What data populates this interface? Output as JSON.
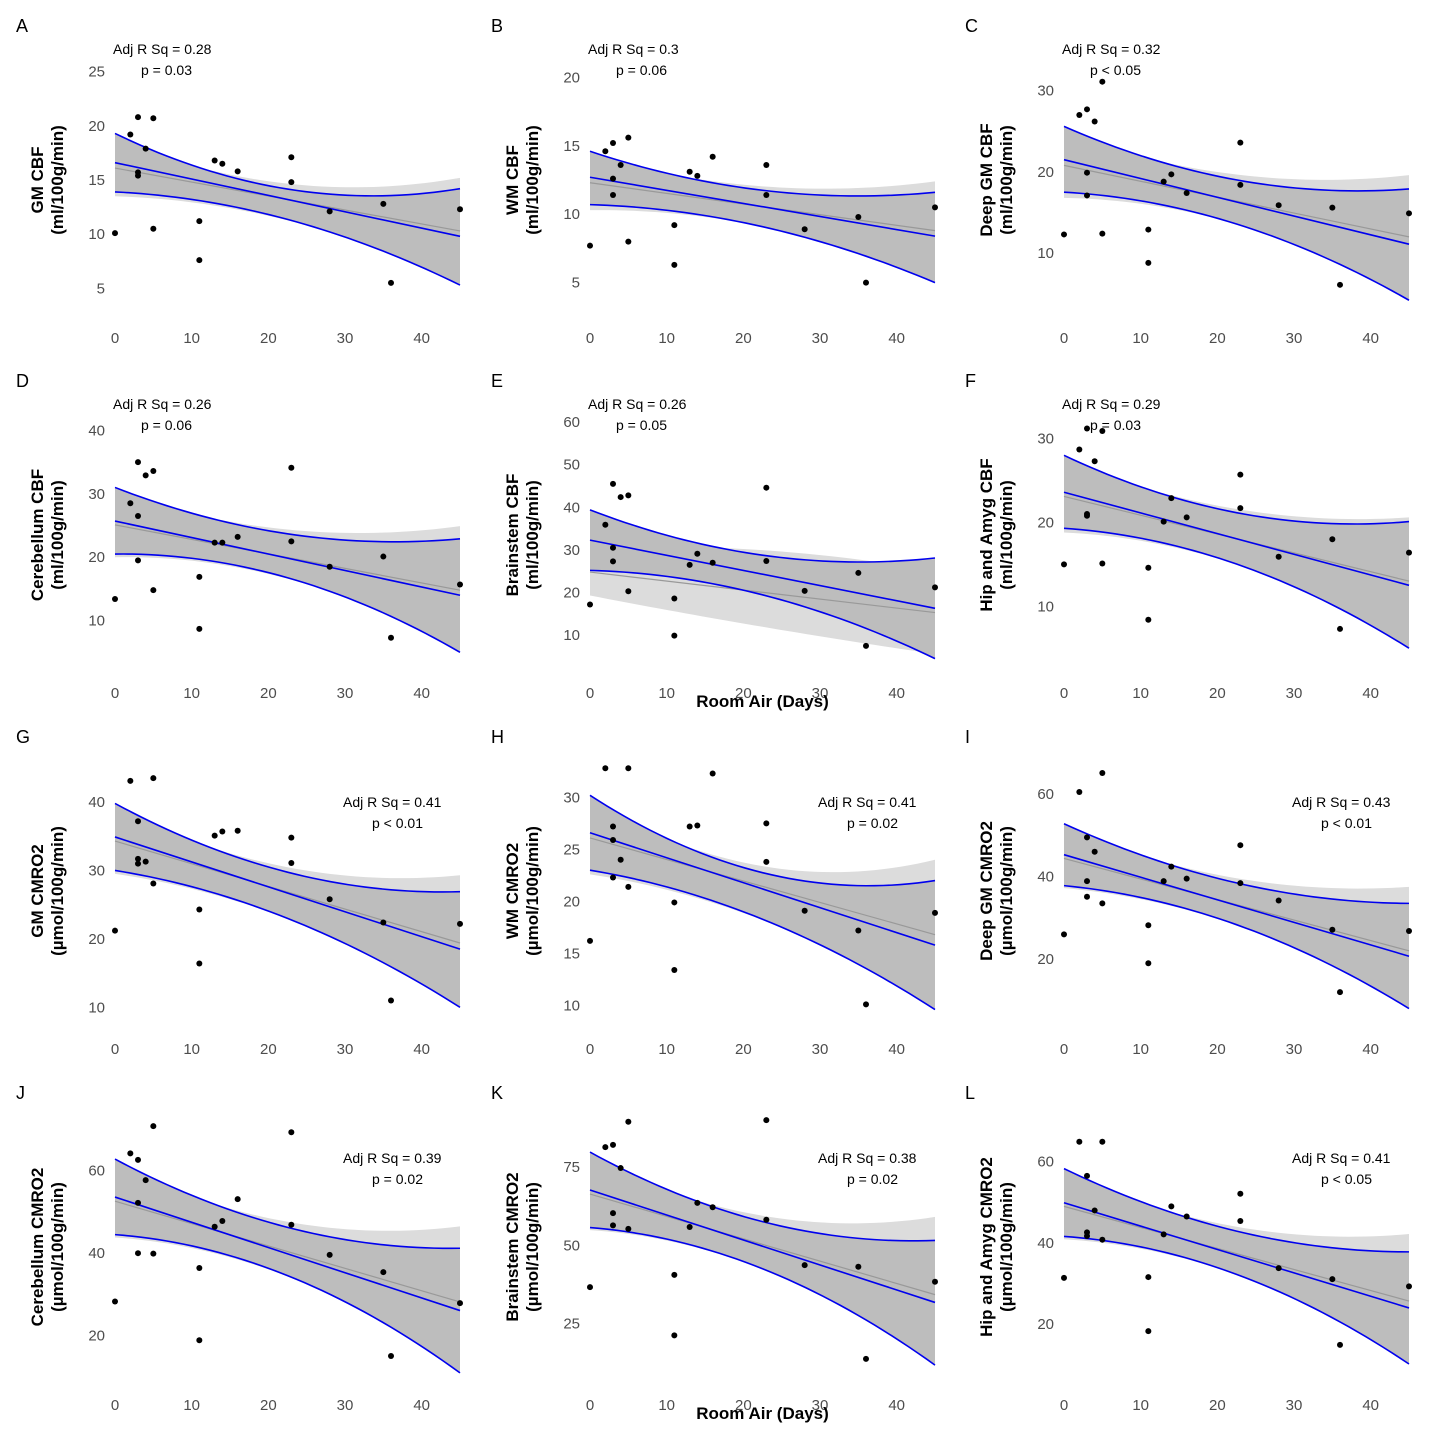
{
  "figure": {
    "x_label": "Room Air (Days)",
    "xlim": [
      0,
      45
    ],
    "x_ticks": [
      0,
      10,
      20,
      30,
      40
    ],
    "colors": {
      "band": "#bdbdbd",
      "band_outer": "#dcdcdc",
      "gray_line": "#999999",
      "blue": "#0000ee",
      "point": "#000000"
    }
  },
  "chart_data": [
    {
      "type": "scatter",
      "panel": "A",
      "ylabel_1": "GM CBF",
      "ylabel_2": "(ml/100g/min)",
      "stat_1": "Adj R Sq =  0.28",
      "stat_2": "p =  0.03",
      "stat_position": "top-left",
      "ylim": [
        3,
        27
      ],
      "y_ticks": [
        5,
        10,
        15,
        20,
        25
      ],
      "x": [
        0,
        2,
        3,
        3,
        3,
        4,
        5,
        5,
        11,
        11,
        13,
        14,
        16,
        23,
        23,
        28,
        35,
        36,
        45
      ],
      "y": [
        10.1,
        19.2,
        20.8,
        15.7,
        15.4,
        17.9,
        20.7,
        10.5,
        11.2,
        7.6,
        16.8,
        16.5,
        15.8,
        17.1,
        14.8,
        12.1,
        12.8,
        5.5,
        12.3
      ],
      "fit": [
        16.6,
        9.8
      ],
      "ci_lower": [
        13.9,
        5.3
      ],
      "ci_upper": [
        19.3,
        14.2
      ],
      "ci_mid_x": 15,
      "ci_mid_lower": 12.6,
      "ci_mid_upper": 15.3,
      "gray_fit": [
        16.1,
        10.3
      ],
      "gray_lower": [
        13.5,
        5.6
      ],
      "gray_upper": [
        18.7,
        15.2
      ],
      "gray_mid_lower": 12.4,
      "gray_mid_upper": 15.5
    },
    {
      "type": "scatter",
      "panel": "B",
      "ylabel_1": "WM CBF",
      "ylabel_2": "(ml/100g/min)",
      "stat_1": "Adj R Sq =  0.3",
      "stat_2": "p =  0.06",
      "stat_position": "top-left",
      "ylim": [
        3,
        22
      ],
      "y_ticks": [
        5,
        10,
        15,
        20
      ],
      "x": [
        0,
        2,
        3,
        3,
        3,
        4,
        5,
        5,
        11,
        11,
        13,
        14,
        16,
        23,
        23,
        28,
        35,
        36,
        45
      ],
      "y": [
        7.7,
        14.6,
        15.2,
        12.6,
        11.4,
        13.6,
        15.6,
        8.0,
        9.2,
        6.3,
        13.1,
        12.8,
        14.2,
        13.6,
        11.4,
        8.9,
        9.8,
        5.0,
        10.5
      ],
      "fit": [
        12.7,
        8.4
      ],
      "ci_lower": [
        10.7,
        5.0
      ],
      "ci_upper": [
        14.6,
        11.6
      ],
      "ci_mid_x": 15,
      "ci_mid_lower": 9.9,
      "ci_mid_upper": 12.4,
      "gray_fit": [
        12.3,
        8.8
      ],
      "gray_lower": [
        10.3,
        5.3
      ],
      "gray_upper": [
        14.3,
        12.4
      ],
      "gray_mid_lower": 9.8,
      "gray_mid_upper": 12.5
    },
    {
      "type": "scatter",
      "panel": "C",
      "ylabel_1": "Deep GM CBF",
      "ylabel_2": "(ml/100g/min)",
      "stat_1": "Adj R Sq =  0.32",
      "stat_2": "p < 0.05",
      "stat_position": "top-left",
      "ylim": [
        3,
        35
      ],
      "y_ticks": [
        10,
        20,
        30
      ],
      "x": [
        0,
        2,
        3,
        3,
        3,
        4,
        5,
        5,
        11,
        11,
        13,
        14,
        16,
        23,
        23,
        28,
        35,
        36,
        45
      ],
      "y": [
        12.3,
        27.0,
        27.7,
        19.9,
        17.1,
        26.2,
        31.1,
        12.4,
        12.9,
        8.8,
        18.8,
        19.7,
        17.4,
        23.6,
        18.4,
        15.9,
        15.6,
        6.1,
        14.9
      ],
      "fit": [
        21.5,
        11.1
      ],
      "ci_lower": [
        17.5,
        4.2
      ],
      "ci_upper": [
        25.6,
        17.9
      ],
      "ci_mid_x": 15,
      "ci_mid_lower": 15.5,
      "ci_mid_upper": 20.6,
      "gray_fit": [
        20.8,
        12.0
      ],
      "gray_lower": [
        16.8,
        4.9
      ],
      "gray_upper": [
        24.7,
        19.6
      ],
      "gray_mid_lower": 15.3,
      "gray_mid_upper": 20.8
    },
    {
      "type": "scatter",
      "panel": "D",
      "ylabel_1": "Cerebellum CBF",
      "ylabel_2": "(ml/100g/min)",
      "stat_1": "Adj R Sq =  0.26",
      "stat_2": "p =  0.06",
      "stat_position": "top-left",
      "ylim": [
        3,
        44
      ],
      "y_ticks": [
        10,
        20,
        30,
        40
      ],
      "x": [
        0,
        2,
        3,
        3,
        3,
        4,
        5,
        5,
        11,
        11,
        13,
        14,
        16,
        23,
        23,
        28,
        35,
        36,
        45
      ],
      "y": [
        13.4,
        28.5,
        35.0,
        26.5,
        19.5,
        32.9,
        33.6,
        14.8,
        16.9,
        8.7,
        22.3,
        22.3,
        23.2,
        34.1,
        22.5,
        18.5,
        20.1,
        7.3,
        15.7
      ],
      "fit": [
        25.7,
        14.0
      ],
      "ci_lower": [
        20.5,
        5.0
      ],
      "ci_upper": [
        31.0,
        22.9
      ],
      "ci_mid_x": 15,
      "ci_mid_lower": 18.9,
      "ci_mid_upper": 25.4,
      "gray_fit": [
        25.1,
        14.8
      ],
      "gray_lower": [
        20.0,
        5.5
      ],
      "gray_upper": [
        30.2,
        24.9
      ],
      "gray_mid_lower": 18.6,
      "gray_mid_upper": 25.6
    },
    {
      "type": "scatter",
      "panel": "E",
      "ylabel_1": "Brainstem CBF",
      "ylabel_2": "(ml/100g/min)",
      "stat_1": "Adj R Sq =  0.26",
      "stat_2": "p =  0.05",
      "stat_position": "top-left",
      "ylim": [
        3,
        64
      ],
      "y_ticks": [
        10,
        20,
        30,
        40,
        50,
        60
      ],
      "x": [
        0,
        2,
        3,
        3,
        3,
        4,
        5,
        5,
        11,
        11,
        13,
        14,
        16,
        23,
        23,
        28,
        35,
        36,
        45
      ],
      "y": [
        17.2,
        35.9,
        45.5,
        27.3,
        30.5,
        42.4,
        42.8,
        20.3,
        18.6,
        9.9,
        26.5,
        29.1,
        27.0,
        44.6,
        27.4,
        20.4,
        24.6,
        7.5,
        21.2
      ],
      "fit": [
        32.3,
        16.3
      ],
      "ci_lower": [
        25.2,
        4.5
      ],
      "ci_upper": [
        39.4,
        28.1
      ],
      "ci_mid_x": 15,
      "ci_mid_lower": 22.4,
      "ci_mid_upper": 31.2,
      "gray_fit": [
        24.8,
        15.3
      ],
      "gray_lower": [
        19.3,
        5.6
      ],
      "gray_upper": [
        30.4,
        25.0
      ],
      "gray_mid_lower": 14.3,
      "gray_mid_upper": 30.6
    },
    {
      "type": "scatter",
      "panel": "F",
      "ylabel_1": "Hip and Amyg CBF",
      "ylabel_2": "(ml/100g/min)",
      "stat_1": "Adj R Sq =  0.29",
      "stat_2": "p =  0.03",
      "stat_position": "top-left",
      "ylim": [
        3,
        34
      ],
      "y_ticks": [
        10,
        20,
        30
      ],
      "x": [
        0,
        2,
        3,
        3,
        3,
        4,
        5,
        5,
        11,
        11,
        13,
        14,
        16,
        23,
        23,
        28,
        35,
        36,
        45
      ],
      "y": [
        15.0,
        28.7,
        31.2,
        21.0,
        20.8,
        27.3,
        30.9,
        15.1,
        14.6,
        8.4,
        20.1,
        22.9,
        20.6,
        25.7,
        21.7,
        15.9,
        18.0,
        7.3,
        16.4
      ],
      "fit": [
        23.6,
        12.5
      ],
      "ci_lower": [
        19.3,
        5.0
      ],
      "ci_upper": [
        28.0,
        20.1
      ],
      "ci_mid_x": 15,
      "ci_mid_lower": 17.1,
      "ci_mid_upper": 22.8,
      "gray_fit": [
        23.1,
        13.0
      ],
      "gray_lower": [
        18.8,
        5.5
      ],
      "gray_upper": [
        27.4,
        20.6
      ],
      "gray_mid_lower": 16.9,
      "gray_mid_upper": 23.0
    },
    {
      "type": "scatter",
      "panel": "G",
      "ylabel_1": "GM CMRO2",
      "ylabel_2": "(µmol/100g/min)",
      "stat_1": "Adj R Sq =  0.41",
      "stat_2": "p < 0.01",
      "stat_position": "top-right",
      "ylim": [
        8,
        46
      ],
      "y_ticks": [
        10,
        20,
        30,
        40
      ],
      "x": [
        0,
        2,
        3,
        3,
        3,
        4,
        5,
        5,
        11,
        11,
        13,
        14,
        16,
        23,
        23,
        28,
        35,
        36,
        45
      ],
      "y": [
        21.2,
        43.1,
        37.2,
        31.7,
        31.0,
        31.3,
        43.5,
        28.1,
        24.3,
        16.4,
        35.1,
        35.7,
        35.8,
        34.8,
        31.1,
        25.8,
        22.4,
        11.0,
        22.2
      ],
      "fit": [
        34.9,
        18.5
      ],
      "ci_lower": [
        30.0,
        10.0
      ],
      "ci_upper": [
        39.8,
        26.9
      ],
      "ci_mid_x": 15,
      "ci_mid_lower": 26.0,
      "ci_mid_upper": 32.3,
      "gray_fit": [
        34.3,
        19.4
      ],
      "gray_lower": [
        29.5,
        10.5
      ],
      "gray_upper": [
        39.0,
        29.3
      ],
      "gray_mid_lower": 25.8,
      "gray_mid_upper": 32.5
    },
    {
      "type": "scatter",
      "panel": "H",
      "ylabel_1": "WM CMRO2",
      "ylabel_2": "(µmol/100g/min)",
      "stat_1": "Adj R Sq =  0.41",
      "stat_2": "p =  0.02",
      "stat_position": "top-right",
      "ylim": [
        8.5,
        33.5
      ],
      "y_ticks": [
        10,
        15,
        20,
        25,
        30
      ],
      "x": [
        0,
        2,
        3,
        3,
        3,
        4,
        5,
        5,
        11,
        11,
        13,
        14,
        16,
        23,
        23,
        28,
        35,
        36,
        45
      ],
      "y": [
        16.2,
        32.8,
        27.2,
        25.9,
        22.3,
        24.0,
        32.8,
        21.4,
        19.9,
        13.4,
        27.2,
        27.3,
        32.3,
        27.5,
        23.8,
        19.1,
        17.2,
        10.1,
        18.9
      ],
      "fit": [
        26.6,
        15.8
      ],
      "ci_lower": [
        23.0,
        9.6
      ],
      "ci_upper": [
        30.2,
        22.0
      ],
      "ci_mid_x": 15,
      "ci_mid_lower": 20.3,
      "ci_mid_upper": 24.5,
      "gray_fit": [
        26.1,
        16.8
      ],
      "gray_lower": [
        22.6,
        10.0
      ],
      "gray_upper": [
        29.6,
        24.0
      ],
      "gray_mid_lower": 20.1,
      "gray_mid_upper": 24.7
    },
    {
      "type": "scatter",
      "panel": "I",
      "ylabel_1": "Deep GM CMRO2",
      "ylabel_2": "(µmol/100g/min)",
      "stat_1": "Adj R Sq =  0.43",
      "stat_2": "p < 0.01",
      "stat_position": "top-right",
      "ylim": [
        5,
        68
      ],
      "y_ticks": [
        20,
        40,
        60
      ],
      "x": [
        0,
        2,
        3,
        3,
        3,
        4,
        5,
        5,
        11,
        11,
        13,
        14,
        16,
        23,
        23,
        28,
        35,
        36,
        45
      ],
      "y": [
        26.0,
        60.5,
        49.5,
        38.9,
        35.1,
        46.0,
        65.1,
        33.5,
        28.2,
        19.0,
        38.9,
        42.4,
        39.5,
        47.6,
        38.4,
        34.2,
        27.1,
        12.0,
        26.8
      ],
      "fit": [
        45.3,
        20.7
      ],
      "ci_lower": [
        37.8,
        8.0
      ],
      "ci_upper": [
        52.8,
        33.5
      ],
      "ci_mid_x": 15,
      "ci_mid_lower": 32.7,
      "ci_mid_upper": 42.2,
      "gray_fit": [
        44.4,
        22.0
      ],
      "gray_lower": [
        37.2,
        8.6
      ],
      "gray_upper": [
        51.6,
        37.5
      ],
      "gray_mid_lower": 32.4,
      "gray_mid_upper": 42.5
    },
    {
      "type": "scatter",
      "panel": "J",
      "ylabel_1": "Cerebellum CMRO2",
      "ylabel_2": "(µmol/100g/min)",
      "stat_1": "Adj R Sq =  0.39",
      "stat_2": "p =  0.02",
      "stat_position": "top-right",
      "ylim": [
        10,
        73
      ],
      "y_ticks": [
        20,
        40,
        60
      ],
      "x": [
        0,
        2,
        3,
        3,
        3,
        4,
        5,
        5,
        11,
        11,
        13,
        14,
        16,
        23,
        23,
        28,
        35,
        36,
        45
      ],
      "y": [
        28.3,
        64.2,
        62.6,
        52.2,
        40.0,
        57.7,
        70.8,
        39.9,
        36.4,
        18.9,
        46.4,
        47.8,
        53.1,
        69.3,
        46.9,
        39.6,
        35.4,
        15.1,
        27.9
      ],
      "fit": [
        53.6,
        26.1
      ],
      "ci_lower": [
        44.5,
        11.0
      ],
      "ci_upper": [
        62.8,
        41.2
      ],
      "ci_mid_x": 15,
      "ci_mid_lower": 39.4,
      "ci_mid_upper": 50.5,
      "gray_fit": [
        52.6,
        28.2
      ],
      "gray_lower": [
        43.8,
        11.7
      ],
      "gray_upper": [
        61.4,
        46.5
      ],
      "gray_mid_lower": 39.0,
      "gray_mid_upper": 50.8
    },
    {
      "type": "scatter",
      "panel": "K",
      "ylabel_1": "Brainstem CMRO2",
      "ylabel_2": "(µmol/100g/min)",
      "stat_1": "Adj R Sq =  0.38",
      "stat_2": "p =  0.02",
      "stat_position": "top-right",
      "ylim": [
        8,
        91
      ],
      "y_ticks": [
        25,
        50,
        75
      ],
      "x": [
        0,
        2,
        3,
        3,
        3,
        4,
        5,
        5,
        11,
        11,
        13,
        14,
        16,
        23,
        23,
        28,
        35,
        36,
        45
      ],
      "y": [
        36.7,
        81.4,
        82.1,
        60.3,
        56.4,
        74.7,
        89.5,
        55.3,
        40.6,
        21.3,
        55.9,
        63.6,
        62.2,
        90.0,
        58.2,
        43.7,
        43.2,
        13.8,
        38.4
      ],
      "fit": [
        67.7,
        31.8
      ],
      "ci_lower": [
        55.7,
        11.8
      ],
      "ci_upper": [
        79.8,
        51.6
      ],
      "ci_mid_x": 15,
      "ci_mid_lower": 48.9,
      "ci_mid_upper": 63.2,
      "gray_fit": [
        66.4,
        34.3
      ],
      "gray_lower": [
        54.9,
        12.5
      ],
      "gray_upper": [
        77.8,
        59.1
      ],
      "gray_mid_lower": 48.6,
      "gray_mid_upper": 63.6
    },
    {
      "type": "scatter",
      "panel": "L",
      "ylabel_1": "Hip and Amyg CMRO2",
      "ylabel_2": "(µmol/100g/min)",
      "stat_1": "Adj R Sq =  0.41",
      "stat_2": "p < 0.05",
      "stat_position": "top-right",
      "ylim": [
        7,
        71
      ],
      "y_ticks": [
        20,
        40,
        60
      ],
      "x": [
        0,
        2,
        3,
        3,
        3,
        4,
        5,
        5,
        11,
        11,
        13,
        14,
        16,
        23,
        23,
        28,
        35,
        36,
        45
      ],
      "y": [
        31.4,
        64.9,
        56.5,
        42.6,
        41.7,
        48.0,
        64.9,
        40.8,
        31.6,
        18.3,
        42.1,
        49.0,
        46.5,
        52.1,
        45.4,
        33.8,
        31.1,
        14.9,
        29.3
      ],
      "fit": [
        49.9,
        24.0
      ],
      "ci_lower": [
        41.6,
        10.2
      ],
      "ci_upper": [
        58.3,
        37.8
      ],
      "ci_mid_x": 15,
      "ci_mid_lower": 36.8,
      "ci_mid_upper": 46.9,
      "gray_fit": [
        49.0,
        25.7
      ],
      "gray_lower": [
        40.9,
        10.9
      ],
      "gray_upper": [
        57.1,
        42.2
      ],
      "gray_mid_lower": 36.5,
      "gray_mid_upper": 47.1
    }
  ]
}
